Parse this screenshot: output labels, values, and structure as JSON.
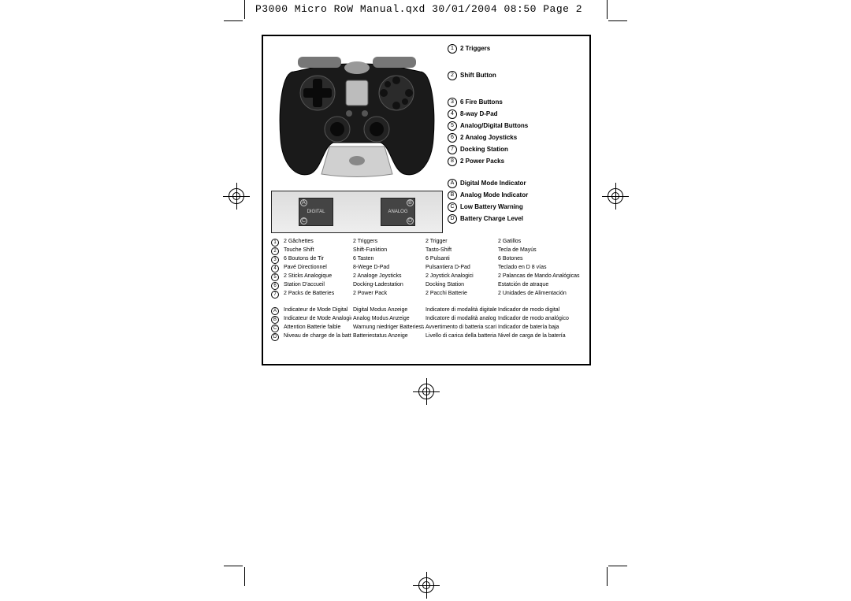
{
  "header": "P3000 Micro RoW Manual.qxd  30/01/2004  08:50  Page 2",
  "legend_numbered": [
    {
      "n": "1",
      "label": "2 Triggers"
    },
    {
      "n": "2",
      "label": "Shift Button"
    },
    {
      "n": "3",
      "label": "6 Fire Buttons"
    },
    {
      "n": "4",
      "label": "8-way D-Pad"
    },
    {
      "n": "5",
      "label": "Analog/Digital Buttons"
    },
    {
      "n": "6",
      "label": "2 Analog Joysticks"
    },
    {
      "n": "7",
      "label": "Docking Station"
    },
    {
      "n": "8",
      "label": "2 Power Packs"
    }
  ],
  "legend_lettered": [
    {
      "n": "A",
      "label": "Digital Mode Indicator"
    },
    {
      "n": "B",
      "label": "Analog Mode Indicator"
    },
    {
      "n": "C",
      "label": "Low Battery Warning"
    },
    {
      "n": "D",
      "label": "Battery Charge Level"
    }
  ],
  "lcd": {
    "left": "DIGITAL",
    "right": "ANALOG",
    "corners": [
      "A",
      "B",
      "C",
      "D"
    ]
  },
  "table_numbered": {
    "rows": [
      "1",
      "2",
      "3",
      "4",
      "5",
      "6",
      "7",
      "8"
    ],
    "cols": [
      [
        "2 Gâchettes",
        "Touche Shift",
        "6 Boutons de Tir",
        "Pavé Directionnel",
        "2 Sticks Analogique",
        "Station D'accueil",
        "2 Packs de Batteries",
        ""
      ],
      [
        "2 Triggers",
        "Shift-Funktion",
        "6 Tasten",
        "8-Wege D-Pad",
        "2 Analoge Joysticks",
        "Docking-Ladestation",
        "2 Power Pack",
        ""
      ],
      [
        "2 Trigger",
        "Tasto-Shift",
        "6 Pulsanti",
        "Pulsantiera D-Pad",
        "2 Joystick Analogici",
        "Docking Station",
        "2 Pacchi Batterie",
        ""
      ],
      [
        "2 Gatillos",
        "Tecla de Mayús",
        "6 Botones",
        "Teclado en D 8 vías",
        "2 Palancas de Mando Analógicas",
        "Estatción de atraque",
        "2 Unidades de Alimentación",
        ""
      ]
    ]
  },
  "table_lettered": {
    "rows": [
      "A",
      "B",
      "C",
      "D"
    ],
    "cols": [
      [
        "Indicateur de Mode Digital",
        "Indicateur de Mode Analogique",
        "Attention Batterie faible",
        "Niveau de charge de la batterie"
      ],
      [
        "Digital Modus Anzeige",
        "Analog Modus Anzeige",
        "Warnung niedriger Batteriestatus",
        "Batteriestatus Anzeige"
      ],
      [
        "Indicatore di modalità digitale",
        "Indicatore di modalità analogica",
        "Avvertimento di batteria scarica",
        "Livello di carica della batteria"
      ],
      [
        "Indicador de modo digital",
        "Indicador de modo analógico",
        "Indicador de batería baja",
        "Nivel de carga de la batería"
      ]
    ]
  },
  "callout5": "5"
}
